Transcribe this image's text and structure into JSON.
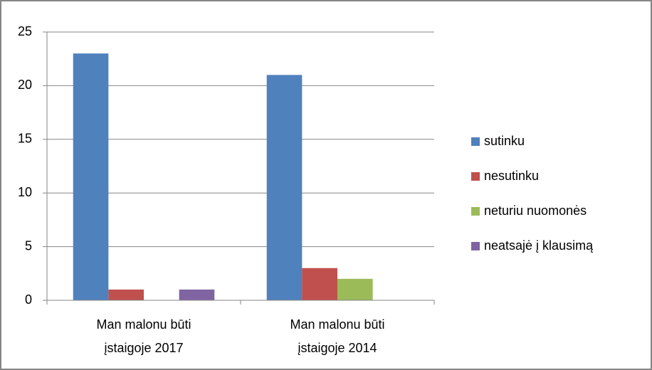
{
  "chart_data": {
    "type": "bar",
    "categories": [
      "Man malonu būti įstaigoje 2017",
      "Man malonu būti įstaigoje 2014"
    ],
    "series": [
      {
        "name": "sutinku",
        "color": "#4f81bd",
        "values": [
          23,
          21
        ]
      },
      {
        "name": "nesutinku",
        "color": "#c0504d",
        "values": [
          1,
          3
        ]
      },
      {
        "name": "neturiu nuomonės",
        "color": "#9bbb59",
        "values": [
          0,
          2
        ]
      },
      {
        "name": "neatsajė į klausimą",
        "color": "#8064a2",
        "values": [
          1,
          0
        ]
      }
    ],
    "ylim": [
      0,
      25
    ],
    "yticks": [
      0,
      5,
      10,
      15,
      20,
      25
    ],
    "grid": true,
    "legend": "right"
  }
}
